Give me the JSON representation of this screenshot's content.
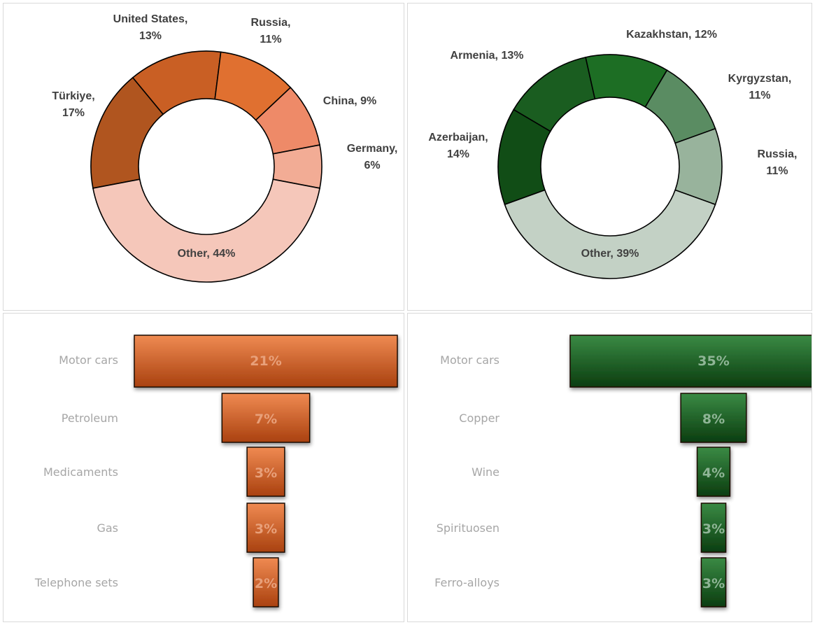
{
  "chart_data": [
    {
      "type": "pie",
      "donut": true,
      "colors": {
        "Türkiye": "#b0551f",
        "United States": "#c95f24",
        "Russia": "#e07030",
        "China": "#ee8a68",
        "Germany": "#f2ac95",
        "Other": "#f5c7ba"
      },
      "slices": [
        {
          "name": "Türkiye",
          "value": 17,
          "lines": [
            "Türkiye,",
            "17%"
          ]
        },
        {
          "name": "United States",
          "value": 13,
          "lines": [
            "United States,",
            "13%"
          ]
        },
        {
          "name": "Russia",
          "value": 11,
          "lines": [
            "Russia,",
            "11%"
          ]
        },
        {
          "name": "China",
          "value": 9,
          "lines": [
            "China, 9%"
          ]
        },
        {
          "name": "Germany",
          "value": 6,
          "lines": [
            "Germany,",
            "6%"
          ]
        },
        {
          "name": "Other",
          "value": 44,
          "lines": [
            "Other, 44%"
          ]
        }
      ]
    },
    {
      "type": "pie",
      "donut": true,
      "colors": {
        "Azerbaijan": "#114d16",
        "Armenia": "#1a5d20",
        "Kazakhstan": "#1d6e24",
        "Kyrgyzstan": "#5a8c62",
        "Russia": "#98b39c",
        "Other": "#c3d1c5"
      },
      "slices": [
        {
          "name": "Azerbaijan",
          "value": 14,
          "lines": [
            "Azerbaijan,",
            "14%"
          ]
        },
        {
          "name": "Armenia",
          "value": 13,
          "lines": [
            "Armenia, 13%"
          ]
        },
        {
          "name": "Kazakhstan",
          "value": 12,
          "lines": [
            "Kazakhstan, 12%"
          ]
        },
        {
          "name": "Kyrgyzstan",
          "value": 11,
          "lines": [
            "Kyrgyzstan,",
            "11%"
          ]
        },
        {
          "name": "Russia",
          "value": 11,
          "lines": [
            "Russia,",
            "11%"
          ]
        },
        {
          "name": "Other",
          "value": 39,
          "lines": [
            "Other, 39%"
          ]
        }
      ]
    },
    {
      "type": "bar",
      "orientation": "funnel",
      "colors": {
        "fill_top": "#ef8a52",
        "fill_bottom": "#a9410f",
        "label": "#e8a07a"
      },
      "categories": [
        "Motor cars",
        "Petroleum",
        "Medicaments",
        "Gas",
        "Telephone sets"
      ],
      "values": [
        21,
        7,
        3,
        3,
        2
      ],
      "labels": [
        "21%",
        "7%",
        "3%",
        "3%",
        "2%"
      ]
    },
    {
      "type": "bar",
      "orientation": "funnel",
      "colors": {
        "fill_top": "#3a8a44",
        "fill_bottom": "#0b3d10",
        "label": "#8fb596"
      },
      "categories": [
        "Motor cars",
        "Copper",
        "Wine",
        "Spirituosen",
        "Ferro-alloys"
      ],
      "values": [
        35,
        8,
        4,
        3,
        3
      ],
      "labels": [
        "35%",
        "8%",
        "4%",
        "3%",
        "3%"
      ]
    }
  ]
}
